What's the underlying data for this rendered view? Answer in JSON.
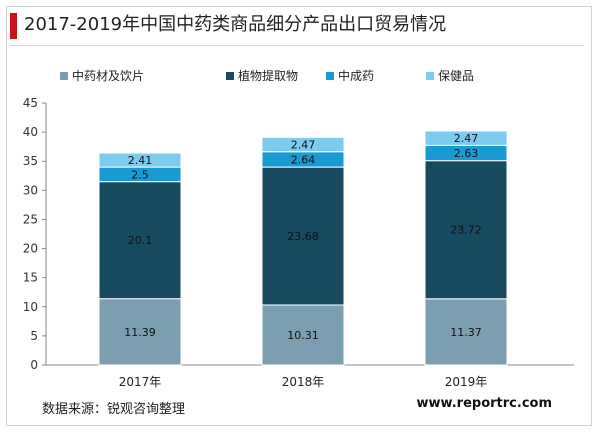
{
  "header": {
    "title": "2017-2019年中国中药类商品细分产品出口贸易情况"
  },
  "footer": {
    "source": "数据来源：锐观咨询整理",
    "website": "www.reportrc.com"
  },
  "colors": {
    "accent": "#c8141e",
    "series": [
      "#7b9fb1",
      "#174a5e",
      "#1a9ad3",
      "#7dcbee"
    ]
  },
  "chart_data": {
    "type": "stacked-bar",
    "title": "2017-2019年中国中药类商品细分产品出口贸易情况",
    "categories": [
      "2017年",
      "2018年",
      "2019年"
    ],
    "series": [
      {
        "name": "中药材及饮片",
        "values": [
          11.39,
          10.31,
          11.37
        ],
        "labels": [
          "11.39",
          "10.31",
          "11.37"
        ]
      },
      {
        "name": "植物提取物",
        "values": [
          20.1,
          23.68,
          23.72
        ],
        "labels": [
          "20.1",
          "23.68",
          "23.72"
        ]
      },
      {
        "name": "中成药",
        "values": [
          2.5,
          2.64,
          2.63
        ],
        "labels": [
          "2.5",
          "2.64",
          "2.63"
        ]
      },
      {
        "name": "保健品",
        "values": [
          2.41,
          2.47,
          2.47
        ],
        "labels": [
          "2.41",
          "2.47",
          "2.47"
        ]
      }
    ],
    "ylim": [
      0,
      45
    ],
    "yticks": [
      "0",
      "5",
      "10",
      "15",
      "20",
      "25",
      "30",
      "35",
      "40",
      "45"
    ],
    "legend_position": "top",
    "grid": false
  }
}
